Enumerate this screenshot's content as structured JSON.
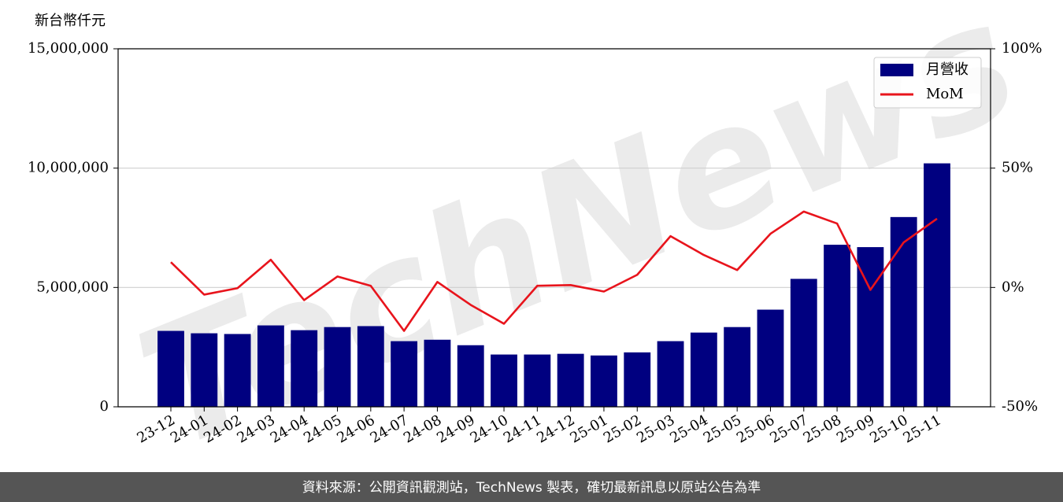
{
  "chart_data": {
    "type": "bar",
    "y_label": "新台幣仟元",
    "watermark": "TechNews",
    "categories": [
      "23-12",
      "24-01",
      "24-02",
      "24-03",
      "24-04",
      "24-05",
      "24-06",
      "24-07",
      "24-08",
      "24-09",
      "24-10",
      "24-11",
      "24-12",
      "25-01",
      "25-02",
      "25-03",
      "25-04",
      "25-05",
      "25-06",
      "25-07",
      "25-08",
      "25-09",
      "25-10",
      "25-11"
    ],
    "series": [
      {
        "name": "月營收",
        "type": "bar",
        "color": "#000080",
        "values": [
          3180000,
          3080000,
          3050000,
          3410000,
          3210000,
          3340000,
          3380000,
          2750000,
          2810000,
          2580000,
          2190000,
          2190000,
          2220000,
          2150000,
          2280000,
          2750000,
          3110000,
          3340000,
          4070000,
          5360000,
          6790000,
          6690000,
          7950000,
          10200000
        ]
      },
      {
        "name": "MoM",
        "type": "line",
        "axis": "y2",
        "color": "#e8141c",
        "values": [
          10.6,
          -3.0,
          -0.3,
          11.6,
          -5.3,
          4.6,
          0.7,
          -18.2,
          2.3,
          -7.3,
          -15.2,
          0.7,
          1.0,
          -1.7,
          5.3,
          21.5,
          13.6,
          7.3,
          22.5,
          31.8,
          26.8,
          -1.0,
          18.9,
          28.8
        ]
      }
    ],
    "ylim": [
      0,
      15000000
    ],
    "yticks": [
      {
        "value": 0,
        "label": "0"
      },
      {
        "value": 5000000,
        "label": "5,000,000"
      },
      {
        "value": 10000000,
        "label": "10,000,000"
      },
      {
        "value": 15000000,
        "label": "15,000,000"
      }
    ],
    "y2lim": [
      -50,
      100
    ],
    "y2ticks": [
      {
        "value": -50,
        "label": "-50%"
      },
      {
        "value": 0,
        "label": "0%"
      },
      {
        "value": 50,
        "label": "50%"
      },
      {
        "value": 100,
        "label": "100%"
      }
    ],
    "grid": true,
    "legend": "upper right"
  },
  "footer": "資料來源：公開資訊觀測站，TechNews 製表，確切最新訊息以原站公告為準"
}
